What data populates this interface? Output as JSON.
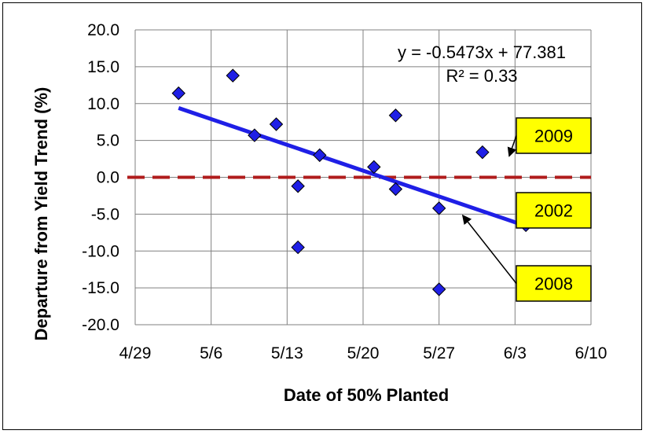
{
  "chart_data": {
    "type": "scatter",
    "xlabel": "Date of 50% Planted",
    "ylabel": "Departure from Yield Trend (%)",
    "x_ticks": [
      "4/29",
      "5/6",
      "5/13",
      "5/20",
      "5/27",
      "6/3",
      "6/10"
    ],
    "y_ticks": [
      "20.0",
      "15.0",
      "10.0",
      "5.0",
      "0.0",
      "-5.0",
      "-10.0",
      "-15.0",
      "-20.0"
    ],
    "xlim": [
      "4/29",
      "6/10"
    ],
    "ylim": [
      -20,
      20
    ],
    "grid": true,
    "colors": {
      "points": "#1f1fe6",
      "trend": "#1f1fe6",
      "zero_line": "#b01c1c",
      "callout": "#ffff00"
    },
    "series": [
      {
        "marker": "diamond",
        "points": [
          {
            "x": "5/3",
            "y": 11.4
          },
          {
            "x": "5/8",
            "y": 13.8
          },
          {
            "x": "5/10",
            "y": 5.7
          },
          {
            "x": "5/12",
            "y": 7.2
          },
          {
            "x": "5/14",
            "y": -1.2
          },
          {
            "x": "5/14",
            "y": -9.5
          },
          {
            "x": "5/16",
            "y": 3.0
          },
          {
            "x": "5/21",
            "y": 1.4
          },
          {
            "x": "5/23",
            "y": 8.4
          },
          {
            "x": "5/23",
            "y": -1.6
          },
          {
            "x": "5/27",
            "y": -4.2
          },
          {
            "x": "5/27",
            "y": -15.2
          },
          {
            "x": "5/31",
            "y": 3.4
          },
          {
            "x": "6/4",
            "y": -6.5
          }
        ]
      }
    ],
    "trendline": {
      "equation": "y = -0.5473x + 77.381",
      "r_squared": "R² = 0.33",
      "from": {
        "x": "5/3",
        "y": 9.4
      },
      "to": {
        "x": "6/4",
        "y": -6.6
      }
    },
    "reference_line": {
      "y": 0.0,
      "style": "dashed"
    },
    "annotations": [
      {
        "label": "2009",
        "x": "5/31",
        "y": 3.4
      },
      {
        "label": "2002",
        "x": "6/4",
        "y": -6.5
      },
      {
        "label": "2008",
        "x": "5/27",
        "y": -4.2
      }
    ]
  }
}
